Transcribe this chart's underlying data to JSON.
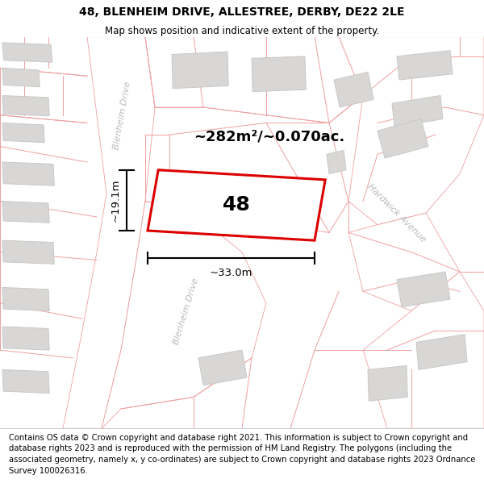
{
  "title": "48, BLENHEIM DRIVE, ALLESTREE, DERBY, DE22 2LE",
  "subtitle": "Map shows position and indicative extent of the property.",
  "footer": "Contains OS data © Crown copyright and database right 2021. This information is subject to Crown copyright and database rights 2023 and is reproduced with the permission of\nHM Land Registry. The polygons (including the associated geometry, namely x, y co-ordinates) are subject to Crown copyright and database rights 2023 Ordnance Survey\n100026316.",
  "area_label": "~282m²/~0.070ac.",
  "width_label": "~33.0m",
  "height_label": "~19.1m",
  "number_label": "48",
  "map_bg": "#f5f4f2",
  "road_fill": "#ffffff",
  "boundary_color": "#f0a0a0",
  "plot_edge": "#dd0000",
  "building_fill": "#d8d7d5",
  "building_edge": "#c8c8c8",
  "street_color": "#bbbbbb",
  "title_fontsize": 10,
  "subtitle_fontsize": 8.5,
  "footer_fontsize": 7.2,
  "area_fontsize": 13,
  "number_fontsize": 18,
  "meas_fontsize": 9.5
}
